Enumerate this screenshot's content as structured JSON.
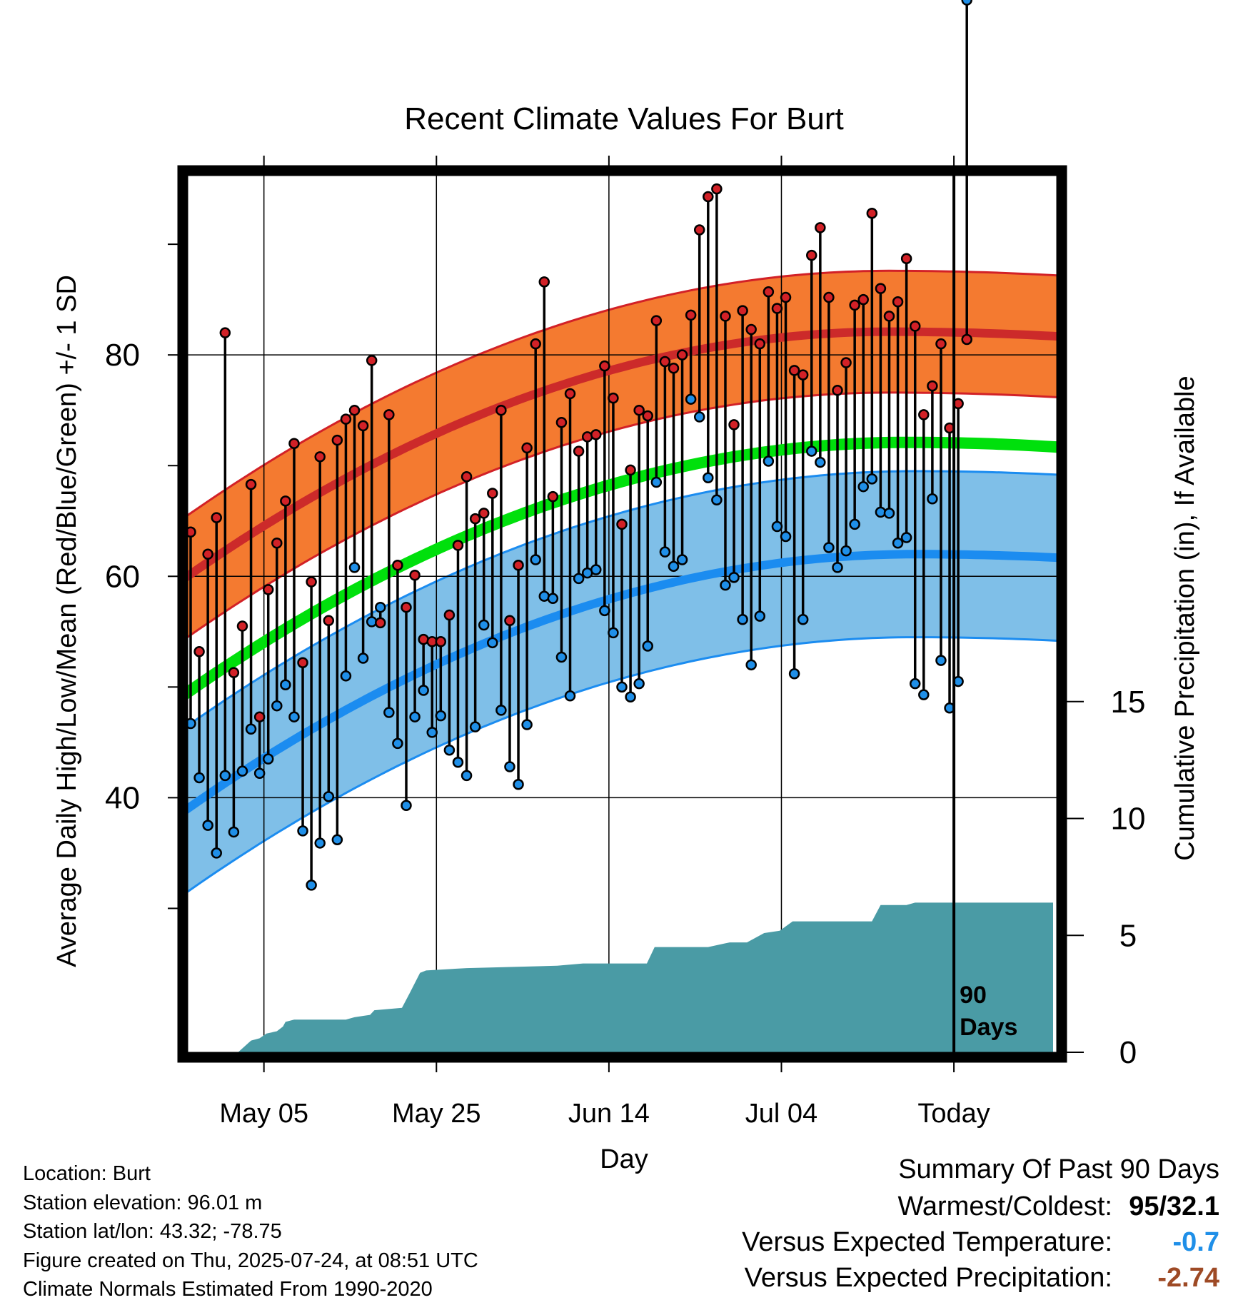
{
  "chart_data": {
    "type": "line",
    "title": "Recent Climate Values For Burt",
    "xlabel": "Day",
    "ylabel_left": "Average Daily High/Low/Mean (Red/Blue/Green) +/- 1 SD",
    "ylabel_right": "Cumulative Precipitation (in), If Available",
    "x_ticks": [
      "May 05",
      "May 25",
      "Jun 14",
      "Jul 04",
      "Today"
    ],
    "today_note": "90\nDays",
    "y_left_ticks": [
      40,
      60,
      80
    ],
    "y_left_range": [
      17,
      96.2
    ],
    "y_right_ticks": [
      0,
      5,
      10,
      15
    ],
    "y_right_range": [
      0,
      37.5
    ],
    "series": [
      {
        "name": "High",
        "color": "#d22127",
        "values": [
          64,
          53.2,
          62,
          65.3,
          82,
          51.3,
          55.5,
          68.3,
          47.3,
          58.8,
          63,
          66.8,
          72,
          52.2,
          59.5,
          70.8,
          56,
          72.3,
          74.2,
          75,
          73.6,
          79.5,
          55.8,
          74.6,
          61,
          57.2,
          60.1,
          54.3,
          54.1,
          54.1,
          56.5,
          62.8,
          69,
          65.2,
          65.7,
          67.5,
          75,
          56,
          61,
          71.6,
          81,
          86.6,
          67.2,
          73.9,
          76.5,
          71.3,
          72.6,
          72.8,
          79,
          76.1,
          64.7,
          69.6,
          75,
          74.5,
          83.1,
          79.4,
          78.8,
          80,
          83.6,
          91.3,
          94.3,
          95,
          83.5,
          73.7,
          84,
          82.3,
          81,
          85.7,
          84.2,
          85.2,
          78.6,
          78.2,
          89,
          91.5,
          85.2,
          76.8,
          79.3,
          84.5,
          85,
          92.8,
          86,
          83.5,
          84.8,
          88.7,
          82.6,
          74.6,
          77.2,
          81,
          73.4,
          75.6,
          81.4
        ]
      },
      {
        "name": "Low",
        "color": "#1f8fe8",
        "values": [
          46.7,
          41.8,
          37.5,
          35,
          42,
          36.9,
          42.4,
          46.2,
          42.2,
          43.5,
          48.3,
          50.2,
          47.3,
          37,
          32.1,
          35.9,
          40.1,
          36.2,
          51,
          60.8,
          52.6,
          55.9,
          57.2,
          47.7,
          44.9,
          39.3,
          47.3,
          49.7,
          45.9,
          47.4,
          44.3,
          43.2,
          42,
          46.4,
          55.6,
          54,
          47.9,
          42.8,
          41.2,
          46.6,
          61.5,
          58.2,
          58,
          52.7,
          49.2,
          59.8,
          60.3,
          60.6,
          56.9,
          54.9,
          50,
          49.1,
          50.3,
          53.7,
          68.5,
          62.2,
          60.9,
          61.5,
          76,
          74.4,
          68.9,
          66.9,
          59.2,
          59.9,
          56.1,
          52,
          56.4,
          70.4,
          64.5,
          63.6,
          51.2,
          56.1,
          71.3,
          70.3,
          62.6,
          60.8,
          62.3,
          64.7,
          68.1,
          68.8,
          65.8,
          65.7,
          63,
          63.5,
          50.3,
          49.3,
          67,
          52.4,
          48.1,
          50.5
        ]
      },
      {
        "name": "Normal High",
        "color": "#cc2a2a",
        "start": 60.2,
        "end": 81.7,
        "peak_day": 81,
        "peak": 82.1
      },
      {
        "name": "Normal Low",
        "color": "#1b8cf0",
        "start": 39.2,
        "end": 61.7,
        "peak_day": 84,
        "peak": 62
      },
      {
        "name": "Normal Mean",
        "color": "#00e00c",
        "start": 49.7,
        "end": 71.7,
        "peak_day": 83,
        "peak": 72.1
      },
      {
        "name": "Cumulative Precipitation",
        "color": "#4a9ba5",
        "points": [
          [
            0,
            0
          ],
          [
            5.5,
            0
          ],
          [
            7,
            0.5
          ],
          [
            8,
            0.6
          ],
          [
            8.8,
            0.8
          ],
          [
            10,
            0.9
          ],
          [
            10.7,
            1.1
          ],
          [
            11,
            1.3
          ],
          [
            12,
            1.4
          ],
          [
            18,
            1.4
          ],
          [
            19,
            1.5
          ],
          [
            20.8,
            1.6
          ],
          [
            21.3,
            1.8
          ],
          [
            24.5,
            1.9
          ],
          [
            25.5,
            2.6
          ],
          [
            26.6,
            3.4
          ],
          [
            27.3,
            3.5
          ],
          [
            32,
            3.6
          ],
          [
            42.5,
            3.7
          ],
          [
            45.5,
            3.8
          ],
          [
            52.9,
            3.8
          ],
          [
            53.8,
            4.5
          ],
          [
            60,
            4.5
          ],
          [
            62.5,
            4.7
          ],
          [
            64.5,
            4.7
          ],
          [
            66.5,
            5.1
          ],
          [
            68.3,
            5.2
          ],
          [
            69.8,
            5.6
          ],
          [
            79,
            5.6
          ],
          [
            80,
            6.3
          ],
          [
            83,
            6.3
          ],
          [
            84,
            6.4
          ],
          [
            95,
            6.4
          ],
          [
            100,
            6.4
          ]
        ]
      }
    ],
    "band_halfwidth": {
      "High": 5.5,
      "Low": 7.5
    },
    "grid": true
  },
  "info": {
    "location": "Location: Burt",
    "elevation": "Station elevation: 96.01 m",
    "latlon": "Station lat/lon: 43.32; -78.75",
    "created": "Figure created on Thu, 2025-07-24, at 08:51 UTC",
    "normals": "Climate Normals Estimated From 1990-2020"
  },
  "summary": {
    "heading": "Summary Of Past 90 Days",
    "warm_cold_label": "Warmest/Coldest:",
    "warm_cold_value": "95/32.1",
    "temp_label": "Versus Expected Temperature:",
    "temp_value": "-0.7",
    "temp_color": "#1f8fe8",
    "precip_label": "Versus Expected Precipitation:",
    "precip_value": "-2.74",
    "precip_color": "#9e4a25"
  }
}
